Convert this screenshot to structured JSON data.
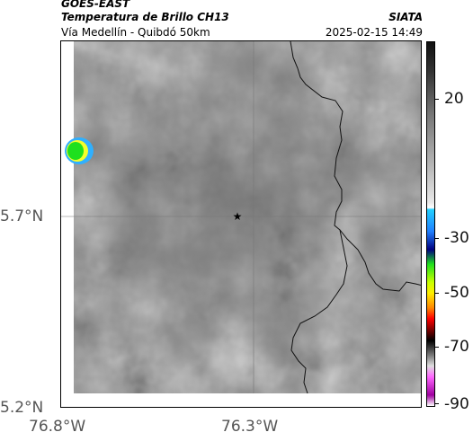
{
  "header": {
    "satellite": "GOES-EAST",
    "product": "Temperatura de Brillo CH13",
    "subtitle": "Vía Medellín - Quibdó 50km",
    "agency": "SIATA",
    "datetime": "2025-02-15 14:49"
  },
  "map": {
    "lat_ticks": [
      "5.7°N",
      "5.2°N"
    ],
    "lon_ticks": [
      "76.8°W",
      "76.3°W"
    ],
    "marker_icon": "star-icon"
  },
  "colorbar": {
    "labels": [
      "20",
      "-30",
      "-50",
      "-70",
      "-90"
    ]
  }
}
